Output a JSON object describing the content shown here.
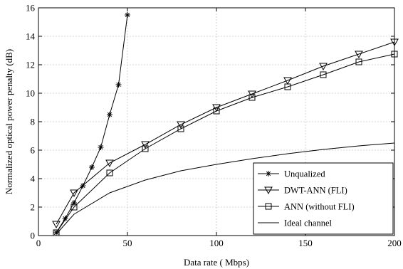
{
  "chart_data": {
    "type": "line",
    "title": "",
    "xlabel": "Data rate ( Mbps)",
    "ylabel": "Normalized optical power penalty (dB)",
    "xlim": [
      0,
      200
    ],
    "ylim": [
      0,
      16
    ],
    "xticks": [
      0,
      50,
      100,
      150,
      200
    ],
    "yticks": [
      0,
      2,
      4,
      6,
      8,
      10,
      12,
      14,
      16
    ],
    "grid": true,
    "legend_position": "bottom-right",
    "series": [
      {
        "name": "Unqualized",
        "marker": "asterisk",
        "x": [
          10,
          15,
          20,
          25,
          30,
          35,
          40,
          45,
          50
        ],
        "y": [
          0.2,
          1.2,
          2.3,
          3.5,
          4.8,
          6.2,
          8.5,
          10.6,
          15.5
        ]
      },
      {
        "name": "DWT-ANN (FLI)",
        "marker": "triangle-down",
        "x": [
          10,
          20,
          40,
          60,
          80,
          100,
          120,
          140,
          160,
          180,
          200
        ],
        "y": [
          0.8,
          3.0,
          5.1,
          6.4,
          7.8,
          9.0,
          9.95,
          10.9,
          11.9,
          12.75,
          13.6
        ]
      },
      {
        "name": "ANN (without FLI)",
        "marker": "square",
        "x": [
          10,
          20,
          40,
          60,
          80,
          100,
          120,
          140,
          160,
          180,
          200
        ],
        "y": [
          0.2,
          2.0,
          4.4,
          6.1,
          7.5,
          8.75,
          9.7,
          10.45,
          11.3,
          12.2,
          12.75
        ]
      },
      {
        "name": "Ideal channel",
        "marker": "none",
        "x": [
          10,
          20,
          40,
          60,
          80,
          100,
          120,
          140,
          160,
          180,
          200
        ],
        "y": [
          0.1,
          1.5,
          3.0,
          3.9,
          4.55,
          5.0,
          5.4,
          5.75,
          6.05,
          6.3,
          6.5
        ]
      }
    ]
  }
}
